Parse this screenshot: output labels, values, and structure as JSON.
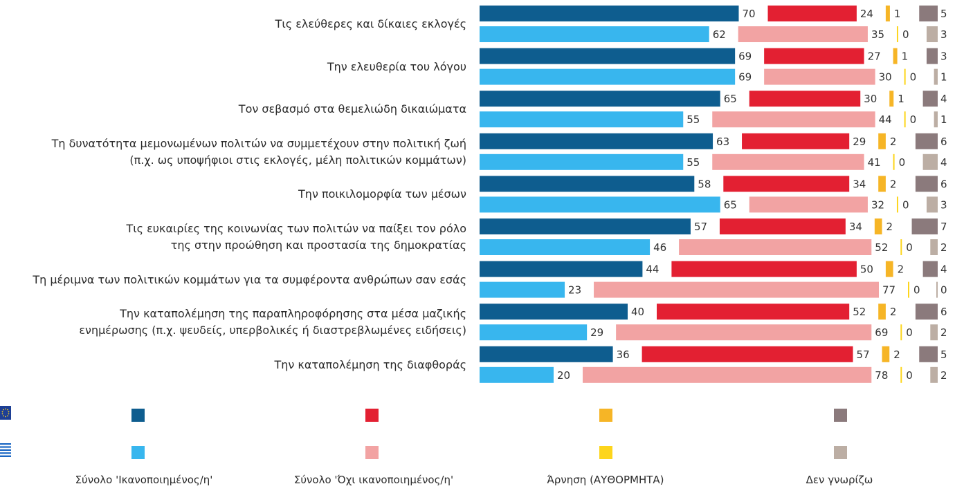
{
  "chart_data": {
    "type": "bar",
    "orientation": "horizontal",
    "stacked": "side-by-side segments per row",
    "categories": [
      "Τις ελεύθερες και δίκαιες εκλογές",
      "Την ελευθερία του λόγου",
      "Τον σεβασμό στα θεμελιώδη δικαιώματα",
      "Τη δυνατότητα μεμονωμένων πολιτών να συμμετέχουν στην πολιτική ζωή\n(π.χ. ως υποψήφιοι στις εκλογές, μέλη πολιτικών κομμάτων)",
      "Την ποικιλομορφία των μέσων",
      "Τις ευκαιρίες της κοινωνίας των πολιτών να παίξει τον ρόλο\nτης στην προώθηση και προστασία της δημοκρατίας",
      "Τη μέριμνα των πολιτικών κομμάτων για τα συμφέροντα ανθρώπων σαν εσάς",
      "Την καταπολέμηση της παραπληροφόρησης στα μέσα μαζικής\nενημέρωσης (π.χ. ψευδείς, υπερβολικές ή διαστρεβλωμένες ειδήσεις)",
      "Την καταπολέμηση της διαφθοράς"
    ],
    "groups": [
      "EU",
      "EL"
    ],
    "series": [
      {
        "name": "Σύνολο 'Ικανοποιημένος/η'",
        "colors": {
          "EU": "#0e5d8f",
          "EL": "#38b6ee"
        },
        "values": {
          "EU": [
            70,
            69,
            65,
            63,
            58,
            57,
            44,
            40,
            36
          ],
          "EL": [
            62,
            69,
            55,
            55,
            65,
            46,
            23,
            29,
            20
          ]
        }
      },
      {
        "name": "Σύνολο 'Όχι ικανοποιημένος/η'",
        "colors": {
          "EU": "#e32032",
          "EL": "#f2a3a3"
        },
        "values": {
          "EU": [
            24,
            27,
            30,
            29,
            34,
            34,
            50,
            52,
            57
          ],
          "EL": [
            35,
            30,
            44,
            41,
            32,
            52,
            77,
            69,
            78
          ]
        }
      },
      {
        "name": "Άρνηση (ΑΥΘΟΡΜΗΤΑ)",
        "colors": {
          "EU": "#f6b526",
          "EL": "#fdd51c"
        },
        "values": {
          "EU": [
            1,
            1,
            1,
            2,
            2,
            2,
            2,
            2,
            2
          ],
          "EL": [
            0,
            0,
            0,
            0,
            0,
            0,
            0,
            0,
            0
          ]
        }
      },
      {
        "name": "Δεν γνωρίζω",
        "colors": {
          "EU": "#8b7a7c",
          "EL": "#bcaea4"
        },
        "values": {
          "EU": [
            5,
            3,
            4,
            6,
            6,
            7,
            4,
            6,
            5
          ],
          "EL": [
            3,
            1,
            1,
            4,
            3,
            2,
            0,
            2,
            2
          ]
        }
      }
    ],
    "legend": {
      "rows": [
        {
          "flag": "eu-flag-icon"
        },
        {
          "flag": "greece-flag-icon"
        }
      ],
      "labels": [
        "Σύνολο 'Ικανοποιημένος/η'",
        "Σύνολο 'Όχι ικανοποιημένος/η'",
        "Άρνηση (ΑΥΘΟΡΜΗΤΑ)",
        "Δεν γνωρίζω"
      ],
      "placement": "bottom"
    }
  }
}
